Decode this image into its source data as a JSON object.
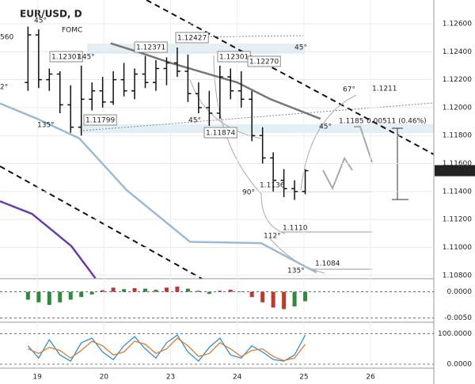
{
  "chart_data": [
    {
      "type": "ohlc",
      "title": "EUR/USD, D",
      "x": [
        -0.14,
        0.02,
        0.18,
        0.34,
        0.5,
        0.66,
        0.82,
        0.98,
        1.14,
        1.3,
        1.46,
        1.62,
        1.78,
        1.94,
        2.1,
        2.26,
        2.42,
        2.58,
        2.74,
        2.9,
        3.06,
        3.22,
        3.38,
        3.54,
        3.7,
        3.86,
        4.02
      ],
      "open": [
        1.1218,
        1.1252,
        1.122,
        1.1224,
        1.1202,
        1.1186,
        1.1206,
        1.1212,
        1.1204,
        1.122,
        1.1212,
        1.1224,
        1.1218,
        1.1228,
        1.1232,
        1.1226,
        1.121,
        1.12,
        1.1196,
        1.1222,
        1.1212,
        1.1206,
        1.118,
        1.1164,
        1.1148,
        1.1142,
        1.114
      ],
      "high": [
        1.1258,
        1.1256,
        1.1228,
        1.1226,
        1.1216,
        1.123,
        1.1218,
        1.1222,
        1.1226,
        1.1232,
        1.1228,
        1.1237,
        1.1234,
        1.1236,
        1.1243,
        1.1238,
        1.1218,
        1.1212,
        1.123,
        1.1228,
        1.1226,
        1.1212,
        1.1186,
        1.1168,
        1.1156,
        1.1148,
        1.1156
      ],
      "low": [
        1.1212,
        1.1214,
        1.1212,
        1.1196,
        1.1182,
        1.118,
        1.1198,
        1.12,
        1.1202,
        1.1208,
        1.1206,
        1.1214,
        1.1212,
        1.1216,
        1.1222,
        1.1204,
        1.1196,
        1.1187,
        1.1192,
        1.1206,
        1.12,
        1.1176,
        1.116,
        1.114,
        1.1136,
        1.1134,
        1.1138
      ],
      "close": [
        1.1252,
        1.122,
        1.1224,
        1.1202,
        1.1186,
        1.1206,
        1.1212,
        1.1204,
        1.122,
        1.1212,
        1.1224,
        1.1218,
        1.1228,
        1.1232,
        1.1226,
        1.121,
        1.12,
        1.1196,
        1.1222,
        1.1212,
        1.1206,
        1.118,
        1.1164,
        1.1148,
        1.1142,
        1.114,
        1.11549
      ],
      "color": "#111111",
      "current_price": 1.11549,
      "series": [
        {
          "color": "#777777",
          "x": [
            1.1,
            1.5,
            2.0,
            2.5,
            3.0,
            3.5,
            4.25
          ],
          "values": [
            1.1246,
            1.124,
            1.1232,
            1.1225,
            1.1218,
            1.1206,
            1.1192
          ]
        },
        {
          "color": "#9bbad6",
          "x": [
            -0.56,
            0.0,
            0.63,
            1.34,
            2.29,
            3.36,
            4.19
          ],
          "values": [
            1.1203,
            1.1192,
            1.1178,
            1.1141,
            1.1104,
            1.1103,
            1.1082
          ]
        },
        {
          "color": "#6a3ab0",
          "x": [
            -0.56,
            -0.08,
            0.51,
            0.87
          ],
          "values": [
            1.1133,
            1.1124,
            1.1101,
            1.1078
          ]
        }
      ],
      "annotations": [
        "560",
        "1.12301",
        "145°",
        "1.12371",
        "1.12427",
        "1.12301",
        "1.12270",
        "45°",
        "2°",
        "1.11799",
        "135°",
        "45°",
        "1.11874",
        "45°",
        "1.1185",
        "0.00511 (0.46%)",
        "1.1211",
        "67°",
        "90°",
        "1.1136",
        "112°",
        "1.1110",
        "135°",
        "1.1084",
        "FOMC",
        "45°"
      ],
      "xlim": [
        -0.56,
        5.95
      ],
      "xticks": [
        {
          "value": 0,
          "label": "19"
        },
        {
          "value": 1,
          "label": "20"
        },
        {
          "value": 2,
          "label": "23"
        },
        {
          "value": 3,
          "label": "24"
        },
        {
          "value": 4,
          "label": "25"
        },
        {
          "value": 5,
          "label": "26"
        }
      ],
      "ylim": [
        1.10776,
        1.1277
      ],
      "yticks": [
        {
          "value": 1.126,
          "label": "1.12600"
        },
        {
          "value": 1.124,
          "label": "1.12400"
        },
        {
          "value": 1.122,
          "label": "1.12200"
        },
        {
          "value": 1.12,
          "label": "1.12000"
        },
        {
          "value": 1.118,
          "label": "1.11800"
        },
        {
          "value": 1.116,
          "label": "1.11600"
        },
        {
          "value": 1.114,
          "label": "1.11400"
        },
        {
          "value": 1.112,
          "label": "1.11200"
        },
        {
          "value": 1.11,
          "label": "1.11000"
        },
        {
          "value": 1.108,
          "label": "1.10800"
        }
      ],
      "grid": true
    },
    {
      "type": "bar",
      "x": [
        -0.14,
        0.02,
        0.18,
        0.34,
        0.5,
        0.66,
        0.82,
        0.98,
        1.14,
        1.3,
        1.46,
        1.62,
        1.78,
        1.94,
        2.1,
        2.26,
        2.42,
        2.58,
        2.74,
        2.9,
        3.06,
        3.22,
        3.38,
        3.54,
        3.7,
        3.86,
        4.02
      ],
      "values": [
        -0.0015,
        -0.002,
        -0.0025,
        -0.002,
        -0.0015,
        -0.001,
        -0.0005,
        0.0003,
        0.0008,
        0.0005,
        0.0007,
        0.0006,
        0.0004,
        0.0008,
        0.001,
        0.0006,
        0.0002,
        -0.0004,
        0.0002,
        0.0004,
        0.0001,
        -0.001,
        -0.002,
        -0.003,
        -0.0033,
        -0.0028,
        -0.0018
      ],
      "colors": [
        "#2e8b3e",
        "#2e8b3e",
        "#2e8b3e",
        "#2e8b3e",
        "#2e8b3e",
        "#2e8b3e",
        "#2e8b3e",
        "#c0392b",
        "#c0392b",
        "#2e8b3e",
        "#c0392b",
        "#2e8b3e",
        "#2e8b3e",
        "#c0392b",
        "#c0392b",
        "#2e8b3e",
        "#2e8b3e",
        "#2e8b3e",
        "#c0392b",
        "#c0392b",
        "#2e8b3e",
        "#c0392b",
        "#c0392b",
        "#c0392b",
        "#c0392b",
        "#2e8b3e",
        "#2e8b3e"
      ],
      "ylim": [
        -0.0058,
        0.0025
      ],
      "yticks": [
        {
          "value": 0,
          "label": "0.0000"
        },
        {
          "value": -0.005,
          "label": "-0.0050"
        }
      ]
    },
    {
      "type": "line",
      "x": [
        -0.14,
        0.02,
        0.18,
        0.34,
        0.5,
        0.66,
        0.82,
        0.98,
        1.14,
        1.3,
        1.46,
        1.62,
        1.78,
        1.94,
        2.1,
        2.26,
        2.42,
        2.58,
        2.74,
        2.9,
        3.06,
        3.22,
        3.38,
        3.54,
        3.7,
        3.86,
        4.02
      ],
      "series": [
        {
          "color": "#2f8fd8",
          "values": [
            60,
            20,
            80,
            30,
            10,
            70,
            85,
            40,
            15,
            60,
            90,
            50,
            20,
            70,
            95,
            40,
            10,
            55,
            85,
            30,
            20,
            60,
            40,
            15,
            10,
            30,
            95
          ]
        },
        {
          "color": "#e07b2a",
          "values": [
            50,
            35,
            55,
            45,
            20,
            45,
            75,
            60,
            30,
            40,
            75,
            65,
            35,
            50,
            85,
            60,
            25,
            35,
            70,
            50,
            25,
            45,
            50,
            25,
            12,
            20,
            65
          ]
        }
      ],
      "ylim": [
        -13,
        137
      ],
      "yticks": [
        {
          "value": 100,
          "label": "100.0000"
        },
        {
          "value": 0,
          "label": "0.0000"
        }
      ]
    }
  ]
}
